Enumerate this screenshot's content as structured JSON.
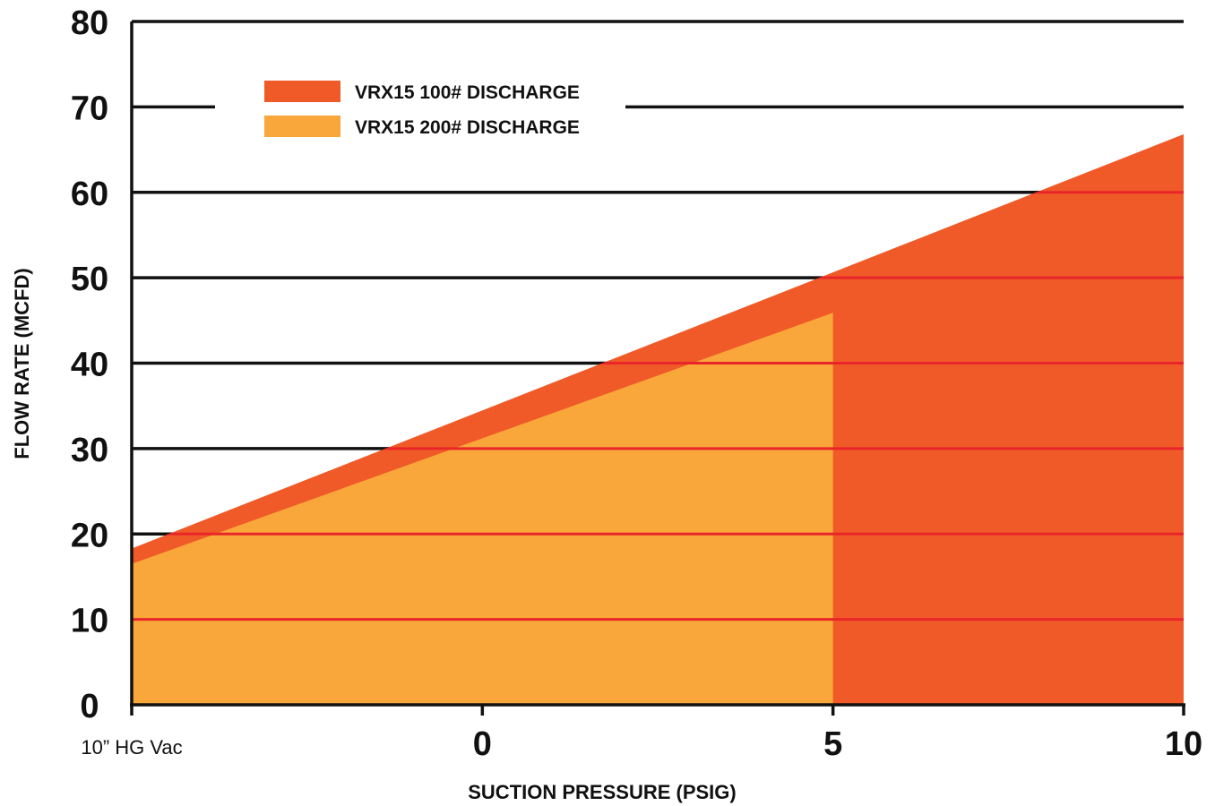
{
  "chart_data": {
    "type": "area",
    "x_ticks": [
      {
        "value": -5,
        "label": "10” HG Vac"
      },
      {
        "value": 0,
        "label": "0"
      },
      {
        "value": 5,
        "label": "5"
      },
      {
        "value": 10,
        "label": "10"
      }
    ],
    "y_ticks": [
      0,
      10,
      20,
      30,
      40,
      50,
      60,
      70,
      80
    ],
    "xlim": [
      -5,
      10
    ],
    "ylim": [
      0,
      80
    ],
    "xlabel": "SUCTION PRESSURE (PSIG)",
    "ylabel": "FLOW RATE (MCFD)",
    "grid": true,
    "legend_position": "top-left",
    "series": [
      {
        "name": "VRX15 100# DISCHARGE",
        "color": "#f05a28",
        "x": [
          -5,
          10
        ],
        "y": [
          18.3,
          66.8
        ]
      },
      {
        "name": "VRX15 200# DISCHARGE",
        "color": "#f9a73a",
        "x": [
          -5,
          5
        ],
        "y": [
          16.5,
          45.9
        ]
      }
    ]
  }
}
